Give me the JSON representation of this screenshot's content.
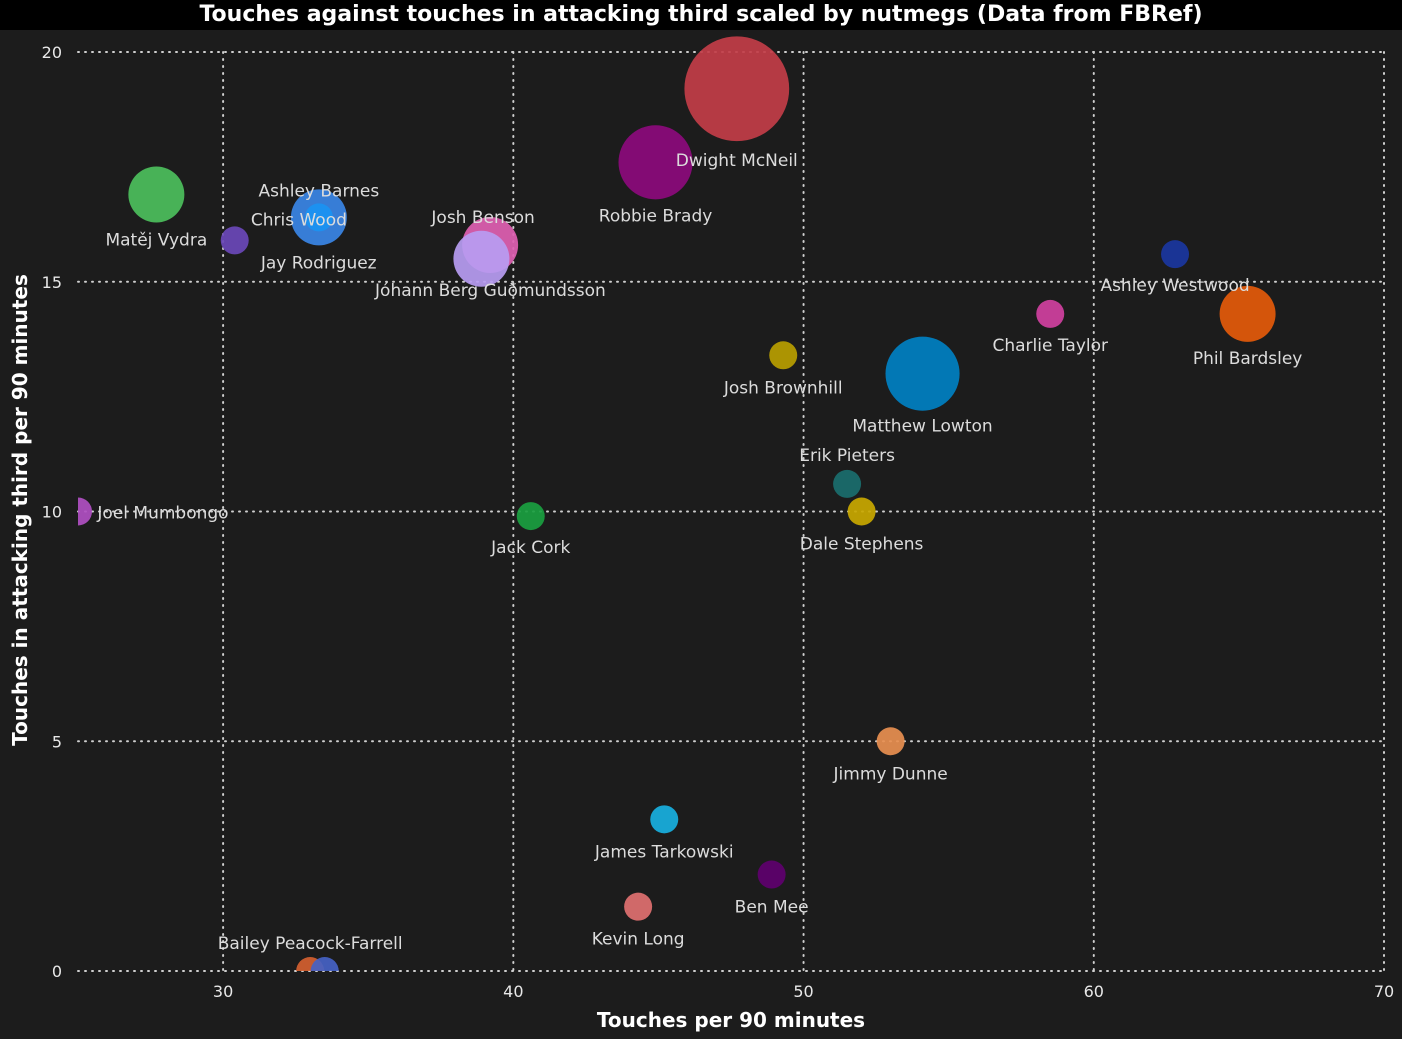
{
  "chart_data": {
    "type": "scatter",
    "title": "Touches against touches in attacking third scaled by nutmegs (Data from FBRef)",
    "xlabel": "Touches per 90 minutes",
    "ylabel": "Touches in attacking third per 90 minutes",
    "size_variable": "nutmegs",
    "xlim": [
      25,
      70
    ],
    "ylim": [
      0,
      20
    ],
    "xticks": [
      30,
      40,
      50,
      60,
      70
    ],
    "yticks": [
      0,
      5,
      10,
      15,
      20
    ],
    "grid": true,
    "points": [
      {
        "name": "Dwight McNeil",
        "x": 47.7,
        "y": 19.2,
        "size": 14,
        "color": "#c23d48"
      },
      {
        "name": "Robbie Brady",
        "x": 44.9,
        "y": 17.6,
        "size": 7,
        "color": "#8c0a7c"
      },
      {
        "name": "Matěj Vydra",
        "x": 27.7,
        "y": 16.9,
        "size": 4,
        "color": "#4cbf5c"
      },
      {
        "name": "Ashley Barnes",
        "x": 33.3,
        "y": 16.4,
        "size": 4,
        "color": "#3a86e6"
      },
      {
        "name": "Chris Wood",
        "x": 33.3,
        "y": 16.4,
        "size": 1,
        "color": "#1a92f2"
      },
      {
        "name": "Jay Rodriguez",
        "x": 30.4,
        "y": 15.9,
        "size": 1,
        "color": "#6a48b8"
      },
      {
        "name": "Josh Benson",
        "x": 39.2,
        "y": 15.8,
        "size": 4,
        "color": "#df60b2"
      },
      {
        "name": "Jóhann Berg Guðmundsson",
        "x": 38.9,
        "y": 15.5,
        "size": 4,
        "color": "#b79cf2"
      },
      {
        "name": "Joel Mumbongo",
        "x": 25.0,
        "y": 10.0,
        "size": 1,
        "color": "#b04fc2"
      },
      {
        "name": "Jack Cork",
        "x": 40.6,
        "y": 9.9,
        "size": 1,
        "color": "#1aa040"
      },
      {
        "name": "Josh Brownhill",
        "x": 49.3,
        "y": 13.4,
        "size": 1,
        "color": "#b89e00"
      },
      {
        "name": "Matthew Lowton",
        "x": 54.1,
        "y": 13.0,
        "size": 7,
        "color": "#0080c2"
      },
      {
        "name": "Erik Pieters",
        "x": 51.5,
        "y": 10.6,
        "size": 1,
        "color": "#1a6e6e"
      },
      {
        "name": "Dale Stephens",
        "x": 52.0,
        "y": 10.0,
        "size": 1,
        "color": "#c9a800"
      },
      {
        "name": "Charlie Taylor",
        "x": 58.5,
        "y": 14.3,
        "size": 1,
        "color": "#d040a0"
      },
      {
        "name": "Ashley Westwood",
        "x": 62.8,
        "y": 15.6,
        "size": 1,
        "color": "#1a36a0"
      },
      {
        "name": "Phil Bardsley",
        "x": 65.3,
        "y": 14.3,
        "size": 4,
        "color": "#e45a0a"
      },
      {
        "name": "Jimmy Dunne",
        "x": 53.0,
        "y": 5.0,
        "size": 1,
        "color": "#e88f50"
      },
      {
        "name": "James Tarkowski",
        "x": 45.2,
        "y": 3.3,
        "size": 1,
        "color": "#18b0e0"
      },
      {
        "name": "Ben Mee",
        "x": 48.9,
        "y": 2.1,
        "size": 1,
        "color": "#5e006e"
      },
      {
        "name": "Kevin Long",
        "x": 44.3,
        "y": 1.4,
        "size": 1,
        "color": "#e07070"
      },
      {
        "name": "Bailey Peacock-Farrell",
        "x": 33.0,
        "y": 0.0,
        "size": 1,
        "color": "#d46030"
      },
      {
        "name": "",
        "x": 33.5,
        "y": 0.0,
        "size": 1,
        "color": "#4562c4"
      }
    ]
  }
}
